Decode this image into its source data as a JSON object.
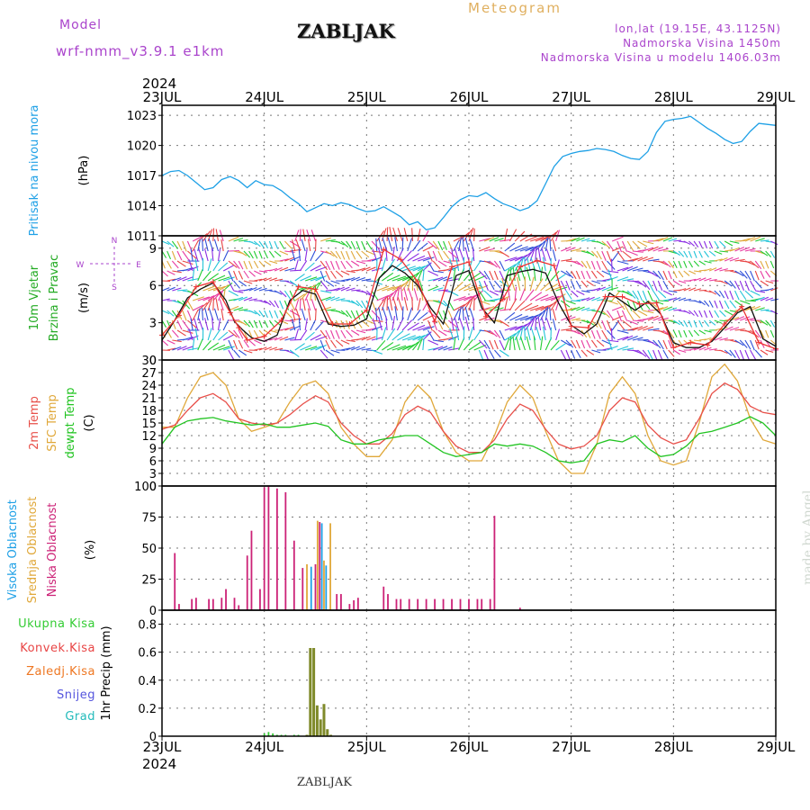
{
  "header": {
    "model_label": "Model",
    "model_name": "wrf-nmm_v3.9.1  e1km",
    "station": "ZABLJAK",
    "product": "Meteogram",
    "coords": "lon,lat (19.15E, 43.1125N)",
    "elevation": "Nadmorska Visina 1450m",
    "model_elevation": "Nadmorska Visina u modelu 1406.03m",
    "footer_station": "ZABLJAK",
    "watermark": "made by Angel"
  },
  "colors": {
    "pressure": "#1ea0e6",
    "t2m": "#e8504a",
    "sfc": "#e0a83a",
    "dew": "#22c422",
    "high_cloud": "#1ea0e6",
    "mid_cloud": "#e0a83a",
    "low_cloud": "#cc2277",
    "total_precip": "#33cc33",
    "conv_precip": "#e84444",
    "frz_precip": "#ee7722",
    "snow": "#5555dd",
    "hail": "#22bbbb",
    "wind_speed": "#111111",
    "wind_gust": "#ee3333",
    "title_purple": "#aa44cc",
    "title_orange": "#e0b060"
  },
  "chart_data": [
    {
      "type": "line",
      "panel": "pressure",
      "ylabel_lines": [
        "Pritisak na nivou mora",
        "(hPa)"
      ],
      "ylim": [
        1011,
        1024
      ],
      "yticks": [
        1011,
        1014,
        1017,
        1020,
        1023
      ],
      "xlim": [
        0,
        144
      ],
      "xticks": [
        0,
        24,
        48,
        72,
        96,
        120,
        144
      ],
      "xtick_labels": [
        "23JUL",
        "24JUL",
        "25JUL",
        "26JUL",
        "27JUL",
        "28JUL",
        "29JUL"
      ],
      "year_label": "2024",
      "grid": true,
      "series": [
        {
          "color_key": "pressure",
          "x": [
            0,
            2,
            4,
            6,
            8,
            10,
            12,
            14,
            16,
            18,
            20,
            22,
            24,
            26,
            28,
            30,
            32,
            34,
            36,
            38,
            40,
            42,
            44,
            46,
            48,
            50,
            52,
            54,
            56,
            58,
            60,
            62,
            64,
            66,
            68,
            70,
            72,
            74,
            76,
            78,
            80,
            82,
            84,
            86,
            88,
            90,
            92,
            94,
            96,
            98,
            100,
            102,
            104,
            106,
            108,
            110,
            112,
            114,
            116,
            118,
            120,
            122,
            124,
            126,
            128,
            130,
            132,
            134,
            136,
            138,
            140,
            142,
            144
          ],
          "y": [
            1017.0,
            1017.4,
            1017.5,
            1017.0,
            1016.3,
            1015.6,
            1015.8,
            1016.6,
            1016.9,
            1016.5,
            1015.8,
            1016.5,
            1016.1,
            1016.0,
            1015.5,
            1014.8,
            1014.2,
            1013.4,
            1013.8,
            1014.2,
            1014.0,
            1014.3,
            1014.1,
            1013.7,
            1013.4,
            1013.5,
            1013.9,
            1013.4,
            1012.9,
            1012.1,
            1012.4,
            1011.6,
            1011.8,
            1012.8,
            1013.9,
            1014.6,
            1015.0,
            1014.9,
            1015.3,
            1014.7,
            1014.2,
            1013.9,
            1013.5,
            1013.8,
            1014.5,
            1016.2,
            1017.9,
            1018.9,
            1019.2,
            1019.4,
            1019.5,
            1019.7,
            1019.6,
            1019.4,
            1019.0,
            1018.7,
            1018.6,
            1019.4,
            1021.3,
            1022.4,
            1022.6,
            1022.7,
            1022.9,
            1022.3,
            1021.7,
            1021.2,
            1020.6,
            1020.2,
            1020.4,
            1021.4,
            1022.2,
            1022.1,
            1022.0
          ]
        }
      ]
    },
    {
      "type": "line",
      "panel": "wind",
      "ylabel_lines": [
        "10m Vjetar",
        "Brzina i Pravac",
        "(m/s)"
      ],
      "compass": {
        "n": "N",
        "s": "S",
        "w": "W",
        "e": "E"
      },
      "ylim": [
        0,
        10
      ],
      "yticks": [
        0,
        3,
        6,
        9
      ],
      "xlim": [
        0,
        144
      ],
      "grid": true,
      "series": [
        {
          "name": "speed",
          "color_key": "wind_speed",
          "x": [
            0,
            3,
            6,
            9,
            12,
            15,
            17,
            19,
            21,
            24,
            27,
            30,
            33,
            36,
            39,
            42,
            45,
            48,
            51,
            54,
            57,
            60,
            63,
            66,
            69,
            72,
            75,
            78,
            81,
            84,
            87,
            90,
            93,
            96,
            99,
            102,
            105,
            108,
            111,
            114,
            117,
            120,
            123,
            126,
            129,
            132,
            135,
            138,
            141,
            144
          ],
          "y": [
            1.6,
            3.2,
            5.0,
            5.7,
            6.2,
            4.8,
            3.1,
            2.4,
            1.8,
            1.5,
            2.0,
            4.8,
            5.6,
            5.3,
            2.9,
            2.7,
            2.8,
            3.3,
            6.6,
            7.6,
            7.0,
            6.0,
            4.2,
            2.9,
            6.8,
            7.2,
            4.2,
            3.0,
            6.8,
            7.1,
            7.3,
            7.0,
            4.6,
            2.8,
            2.1,
            2.9,
            5.4,
            4.7,
            4.0,
            4.7,
            3.7,
            1.4,
            1.0,
            1.0,
            1.5,
            2.6,
            3.8,
            4.3,
            1.7,
            1.1
          ]
        },
        {
          "name": "gust",
          "color_key": "wind_gust",
          "x": [
            0,
            4,
            8,
            12,
            16,
            18,
            20,
            24,
            28,
            32,
            36,
            40,
            44,
            48,
            52,
            56,
            60,
            64,
            68,
            72,
            76,
            80,
            84,
            88,
            92,
            96,
            100,
            104,
            108,
            112,
            116,
            120,
            124,
            128,
            132,
            136,
            140,
            144
          ],
          "y": [
            2.0,
            3.6,
            5.9,
            6.3,
            3.8,
            2.6,
            1.6,
            1.9,
            3.2,
            5.9,
            5.7,
            2.9,
            2.9,
            4.0,
            8.9,
            8.1,
            6.3,
            3.1,
            7.5,
            7.9,
            3.5,
            4.9,
            7.5,
            8.0,
            7.6,
            2.7,
            2.6,
            5.1,
            5.1,
            4.5,
            4.6,
            1.0,
            1.4,
            1.2,
            2.9,
            4.3,
            1.4,
            0.9
          ]
        }
      ]
    },
    {
      "type": "line",
      "panel": "temperature",
      "ylabel_lines": [
        "2m Temp",
        "SFC Temp",
        "dewpt Temp",
        "(C)"
      ],
      "ylim": [
        0,
        30
      ],
      "yticks": [
        0,
        3,
        6,
        9,
        12,
        15,
        18,
        21,
        24,
        27,
        30
      ],
      "xlim": [
        0,
        144
      ],
      "grid": true,
      "series": [
        {
          "name": "SFC Temp",
          "color_key": "sfc",
          "x": [
            0,
            3,
            6,
            9,
            12,
            15,
            18,
            21,
            24,
            27,
            30,
            33,
            36,
            39,
            42,
            45,
            48,
            51,
            54,
            57,
            60,
            63,
            66,
            69,
            72,
            75,
            78,
            81,
            84,
            87,
            90,
            93,
            96,
            99,
            102,
            105,
            108,
            111,
            114,
            117,
            120,
            123,
            126,
            129,
            132,
            135,
            138,
            141,
            144
          ],
          "y": [
            14,
            14,
            21,
            26,
            27,
            24,
            16,
            13,
            14,
            15,
            20,
            24,
            25,
            22,
            14,
            10,
            7,
            7,
            11,
            20,
            24,
            21,
            13,
            8,
            6,
            6,
            12,
            20,
            24,
            21,
            13,
            6,
            3,
            3,
            10,
            22,
            26,
            22,
            12,
            6,
            5,
            6,
            15,
            26,
            29,
            25,
            16,
            11,
            10
          ]
        },
        {
          "name": "2m Temp",
          "color_key": "t2m",
          "x": [
            0,
            3,
            6,
            9,
            12,
            15,
            18,
            21,
            24,
            27,
            30,
            33,
            36,
            39,
            42,
            45,
            48,
            51,
            54,
            57,
            60,
            63,
            66,
            69,
            72,
            75,
            78,
            81,
            84,
            87,
            90,
            93,
            96,
            99,
            102,
            105,
            108,
            111,
            114,
            117,
            120,
            123,
            126,
            129,
            132,
            135,
            138,
            141,
            144
          ],
          "y": [
            13.5,
            14.5,
            18,
            21,
            22,
            20,
            16,
            15,
            14.5,
            15,
            17,
            19.5,
            21.5,
            20,
            15,
            12,
            10,
            10,
            12.5,
            17,
            19,
            17.5,
            13,
            9.5,
            8,
            8,
            11,
            16,
            19.5,
            18,
            13.5,
            10,
            8.8,
            9.5,
            12,
            18,
            21,
            20,
            14.5,
            11.5,
            10,
            11,
            16,
            22,
            24.5,
            23,
            19,
            17.5,
            17
          ]
        },
        {
          "name": "dewpt Temp",
          "color_key": "dew",
          "x": [
            0,
            3,
            6,
            9,
            12,
            15,
            18,
            21,
            24,
            27,
            30,
            33,
            36,
            39,
            42,
            45,
            48,
            51,
            54,
            57,
            60,
            63,
            66,
            69,
            72,
            75,
            78,
            81,
            84,
            87,
            90,
            93,
            96,
            99,
            102,
            105,
            108,
            111,
            114,
            117,
            120,
            123,
            126,
            129,
            132,
            135,
            138,
            141,
            144
          ],
          "y": [
            10,
            14,
            15.5,
            16,
            16.3,
            15.5,
            15,
            14.5,
            14.8,
            14,
            14,
            14.5,
            15,
            14.2,
            11,
            10,
            10,
            11,
            11.5,
            12,
            12,
            10,
            8,
            7,
            7.5,
            8,
            10,
            9.5,
            10,
            9.5,
            8,
            6,
            5.5,
            6,
            10,
            11,
            10.5,
            12,
            9,
            7,
            7.5,
            9.5,
            12.5,
            13,
            14,
            15,
            16.5,
            15,
            12
          ]
        }
      ]
    },
    {
      "type": "bar",
      "panel": "clouds",
      "ylabel_lines": [
        "Visoka Oblacnost",
        "Srednja Oblacnost",
        "Niska Oblacnost",
        "(%)"
      ],
      "ylim": [
        0,
        100
      ],
      "yticks": [
        0,
        25,
        50,
        75,
        100
      ],
      "xlim": [
        0,
        144
      ],
      "grid": true,
      "series": [
        {
          "name": "Niska Oblacnost",
          "color_key": "low_cloud",
          "x": [
            3,
            4,
            7,
            8,
            11,
            12,
            14,
            15,
            17,
            18,
            20,
            21,
            23,
            24,
            25,
            27,
            29,
            31,
            33,
            36,
            37,
            41,
            42,
            44,
            45,
            46,
            52,
            53,
            55,
            56,
            58,
            60,
            62,
            64,
            66,
            68,
            70,
            72,
            74,
            75,
            77,
            78,
            84
          ],
          "y": [
            46,
            5,
            9,
            10,
            9,
            9,
            10,
            17,
            10,
            4,
            44,
            64,
            17,
            99,
            100,
            98,
            95,
            56,
            34,
            37,
            71,
            13,
            13,
            5,
            8,
            10,
            19,
            13,
            9,
            9,
            9,
            9,
            9,
            9,
            9,
            9,
            9,
            9,
            9,
            9,
            9,
            76,
            2
          ]
        },
        {
          "name": "Srednja Oblacnost",
          "color_key": "mid_cloud",
          "x": [
            34,
            36.5,
            38,
            39.5
          ],
          "y": [
            37,
            72,
            40,
            70
          ]
        },
        {
          "name": "Visoka Oblacnost",
          "color_key": "high_cloud",
          "x": [
            35,
            37.5,
            38.5
          ],
          "y": [
            35,
            70,
            36
          ]
        }
      ]
    },
    {
      "type": "bar",
      "panel": "precip",
      "ylabel_lines": [
        "1hr Precip (mm)"
      ],
      "legend": [
        {
          "label": "Ukupna Kisa",
          "color_key": "total_precip"
        },
        {
          "label": "Konvek.Kisa",
          "color_key": "conv_precip"
        },
        {
          "label": "Zaledj.Kisa",
          "color_key": "frz_precip"
        },
        {
          "label": "Snijeg",
          "color_key": "snow"
        },
        {
          "label": "Grad",
          "color_key": "hail"
        }
      ],
      "ylim": [
        0,
        0.9
      ],
      "yticks": [
        0,
        0.2,
        0.4,
        0.6,
        0.8
      ],
      "xlim": [
        0,
        144
      ],
      "grid": true,
      "series": [
        {
          "name": "Ukupna Kisa",
          "color_key": "total_precip",
          "x": [
            24,
            25,
            26,
            27,
            28,
            29,
            31,
            32
          ],
          "y": [
            0.02,
            0.03,
            0.02,
            0.01,
            0.01,
            0.01,
            0.01,
            0.01
          ]
        },
        {
          "name": "precip_main",
          "color_key": "precip_main",
          "x": [
            34,
            34.8,
            35.6,
            36.4,
            37.2,
            38.0,
            38.8,
            39.6
          ],
          "y": [
            0.01,
            0.63,
            0.63,
            0.22,
            0.12,
            0.23,
            0.05,
            0.01
          ]
        }
      ]
    }
  ]
}
